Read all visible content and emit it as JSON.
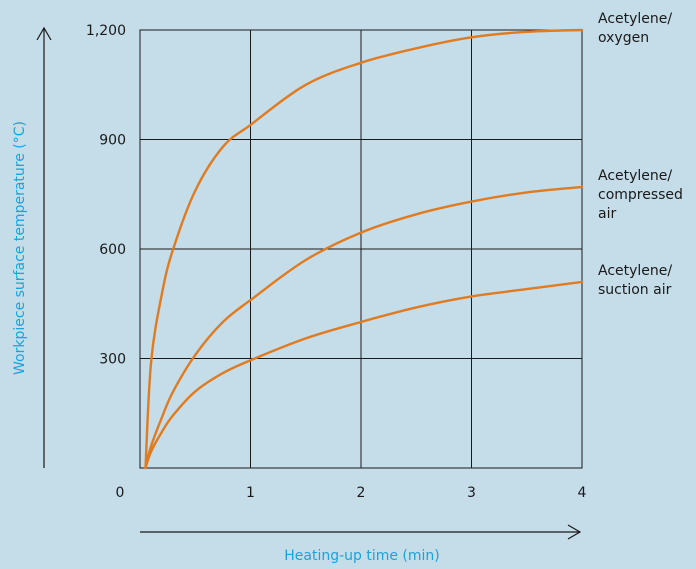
{
  "chart_data": {
    "type": "line",
    "xlabel": "Heating-up time (min)",
    "ylabel": "Workpiece surface temperature (°C)",
    "xlim": [
      0,
      4
    ],
    "ylim": [
      0,
      1200
    ],
    "x_ticks": [
      "0",
      "1",
      "2",
      "3",
      "4"
    ],
    "y_ticks": [
      "300",
      "600",
      "900",
      "1,200"
    ],
    "x_tick_values": [
      0,
      1,
      2,
      3,
      4
    ],
    "y_tick_values": [
      300,
      600,
      900,
      1200
    ],
    "grid": true,
    "series": [
      {
        "name_lines": [
          "Acetylene/",
          "oxygen"
        ],
        "x": [
          0.05,
          0.1,
          0.2,
          0.3,
          0.5,
          0.75,
          1.0,
          1.5,
          2.0,
          2.5,
          3.0,
          3.5,
          4.0
        ],
        "y": [
          0,
          290,
          480,
          600,
          760,
          880,
          940,
          1050,
          1110,
          1150,
          1180,
          1195,
          1200
        ]
      },
      {
        "name_lines": [
          "Acetylene/",
          "compressed",
          "air"
        ],
        "x": [
          0.05,
          0.1,
          0.2,
          0.3,
          0.5,
          0.75,
          1.0,
          1.5,
          2.0,
          2.5,
          3.0,
          3.5,
          4.0
        ],
        "y": [
          0,
          60,
          140,
          210,
          310,
          400,
          460,
          570,
          645,
          695,
          730,
          755,
          770
        ]
      },
      {
        "name_lines": [
          "Acetylene/",
          "suction air"
        ],
        "x": [
          0.05,
          0.1,
          0.2,
          0.3,
          0.5,
          0.75,
          1.0,
          1.5,
          2.0,
          2.5,
          3.0,
          3.5,
          4.0
        ],
        "y": [
          0,
          45,
          100,
          145,
          210,
          260,
          295,
          355,
          400,
          440,
          470,
          490,
          510
        ]
      }
    ]
  },
  "colors": {
    "background": "#c5dce9",
    "series": "#e07b20",
    "grid": "#1a1a1a",
    "axis_title": "#1aa3dc"
  }
}
